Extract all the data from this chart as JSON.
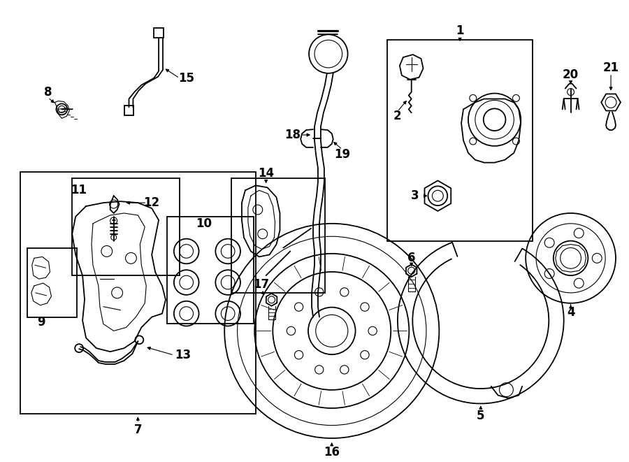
{
  "bg_color": "#ffffff",
  "line_color": "#000000",
  "fig_width": 9.0,
  "fig_height": 6.61,
  "dpi": 100,
  "font_size": 12,
  "font_size_small": 10
}
